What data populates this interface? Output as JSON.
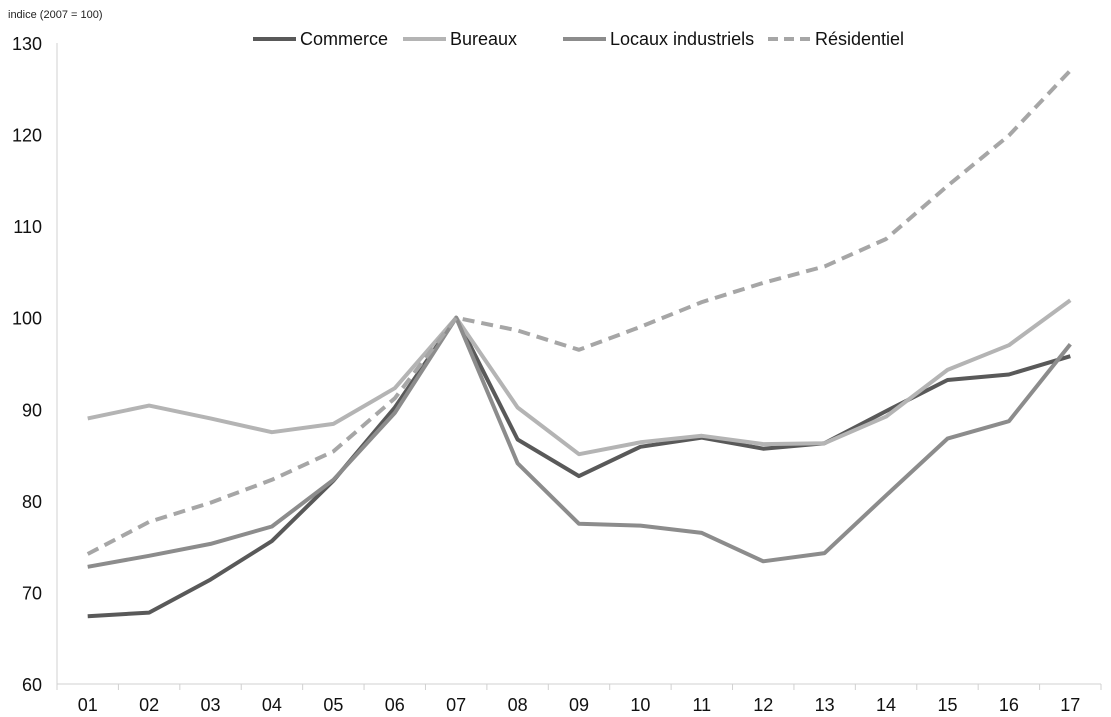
{
  "chart_data": {
    "type": "line",
    "unit_label": "indice (2007 = 100)",
    "title": "",
    "xlabel": "",
    "ylabel": "",
    "categories": [
      "01",
      "02",
      "03",
      "04",
      "05",
      "06",
      "07",
      "08",
      "09",
      "10",
      "11",
      "12",
      "13",
      "14",
      "15",
      "16",
      "17"
    ],
    "ylim": [
      60,
      130
    ],
    "yticks": [
      60,
      70,
      80,
      90,
      100,
      110,
      120,
      130
    ],
    "grid": false,
    "legend_position": "top",
    "series": [
      {
        "name": "Commerce",
        "color": "#595959",
        "dash": "solid",
        "values": [
          67.4,
          67.8,
          71.4,
          75.6,
          82.2,
          90.2,
          100,
          86.7,
          82.7,
          85.9,
          86.9,
          85.7,
          86.3,
          89.8,
          93.2,
          93.8,
          95.8
        ]
      },
      {
        "name": "Bureaux",
        "color": "#b4b4b4",
        "dash": "solid",
        "values": [
          89.0,
          90.4,
          89.0,
          87.5,
          88.4,
          92.3,
          100,
          90.2,
          85.1,
          86.4,
          87.1,
          86.2,
          86.3,
          89.2,
          94.3,
          97.0,
          101.9
        ]
      },
      {
        "name": "Locaux industriels",
        "color": "#8c8c8c",
        "dash": "solid",
        "values": [
          72.8,
          74.0,
          75.3,
          77.2,
          82.3,
          89.6,
          100,
          84.1,
          77.5,
          77.3,
          76.5,
          73.4,
          74.3,
          80.6,
          86.8,
          88.7,
          97.1
        ]
      },
      {
        "name": "Résidentiel",
        "color": "#a6a6a6",
        "dash": "dashed",
        "values": [
          74.2,
          77.7,
          79.8,
          82.3,
          85.4,
          91.2,
          100,
          98.6,
          96.5,
          99.0,
          101.7,
          103.8,
          105.6,
          108.6,
          114.4,
          119.9,
          127.0
        ]
      }
    ]
  }
}
